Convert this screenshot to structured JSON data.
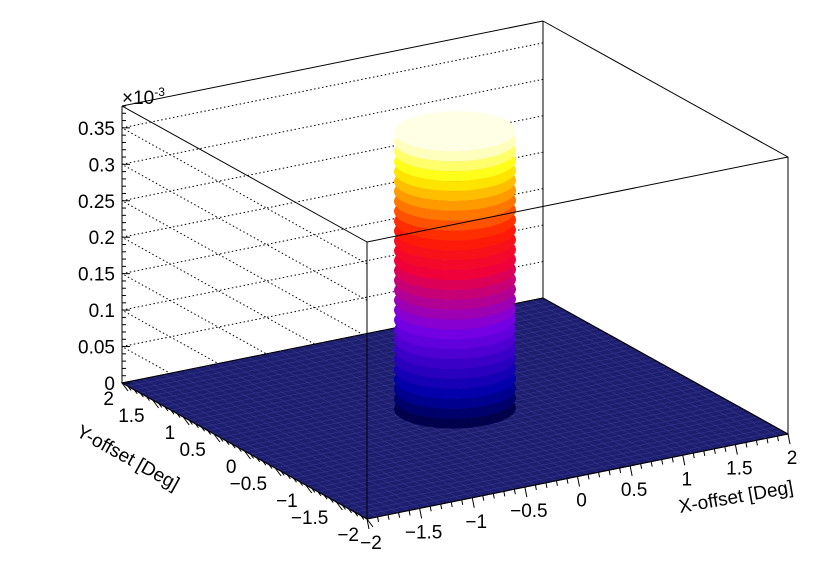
{
  "chart_data": {
    "type": "surface3d",
    "title": "",
    "xlabel": "X-offset [Deg]",
    "ylabel": "Y-offset [Deg]",
    "zlabel": "",
    "z_multiplier": "×10",
    "z_multiplier_exponent": "-3",
    "xlim": [
      -2,
      2
    ],
    "ylim": [
      -2,
      2
    ],
    "zlim": [
      0,
      0.38
    ],
    "x_ticks": [
      -2,
      -1.5,
      -1,
      -0.5,
      0,
      0.5,
      1,
      1.5,
      2
    ],
    "x_tick_labels": [
      "−2",
      "−1.5",
      "−1",
      "−0.5",
      "0",
      "0.5",
      "1",
      "1.5",
      "2"
    ],
    "y_ticks": [
      -2,
      -1.5,
      -1,
      -0.5,
      0,
      0.5,
      1,
      1.5,
      2
    ],
    "y_tick_labels": [
      "−2",
      "−1.5",
      "−1",
      "−0.5",
      "0",
      "0.5",
      "1",
      "1.5",
      "2"
    ],
    "z_ticks": [
      0,
      0.05,
      0.1,
      0.15,
      0.2,
      0.25,
      0.3,
      0.35
    ],
    "z_tick_labels": [
      "0",
      "0.05",
      "0.1",
      "0.15",
      "0.2",
      "0.25",
      "0.3",
      "0.35"
    ],
    "grid": true,
    "surface": {
      "shape": "disk",
      "center": [
        0,
        0
      ],
      "radius_deg": 0.5,
      "height": 0.38,
      "outside_value": 0
    },
    "colors": {
      "floor": "#1e1e6e",
      "floor_grid": "#3a3a9a",
      "palette_low": "#000080",
      "palette_mid": "#ff0000",
      "palette_high": "#ffffe6"
    }
  }
}
